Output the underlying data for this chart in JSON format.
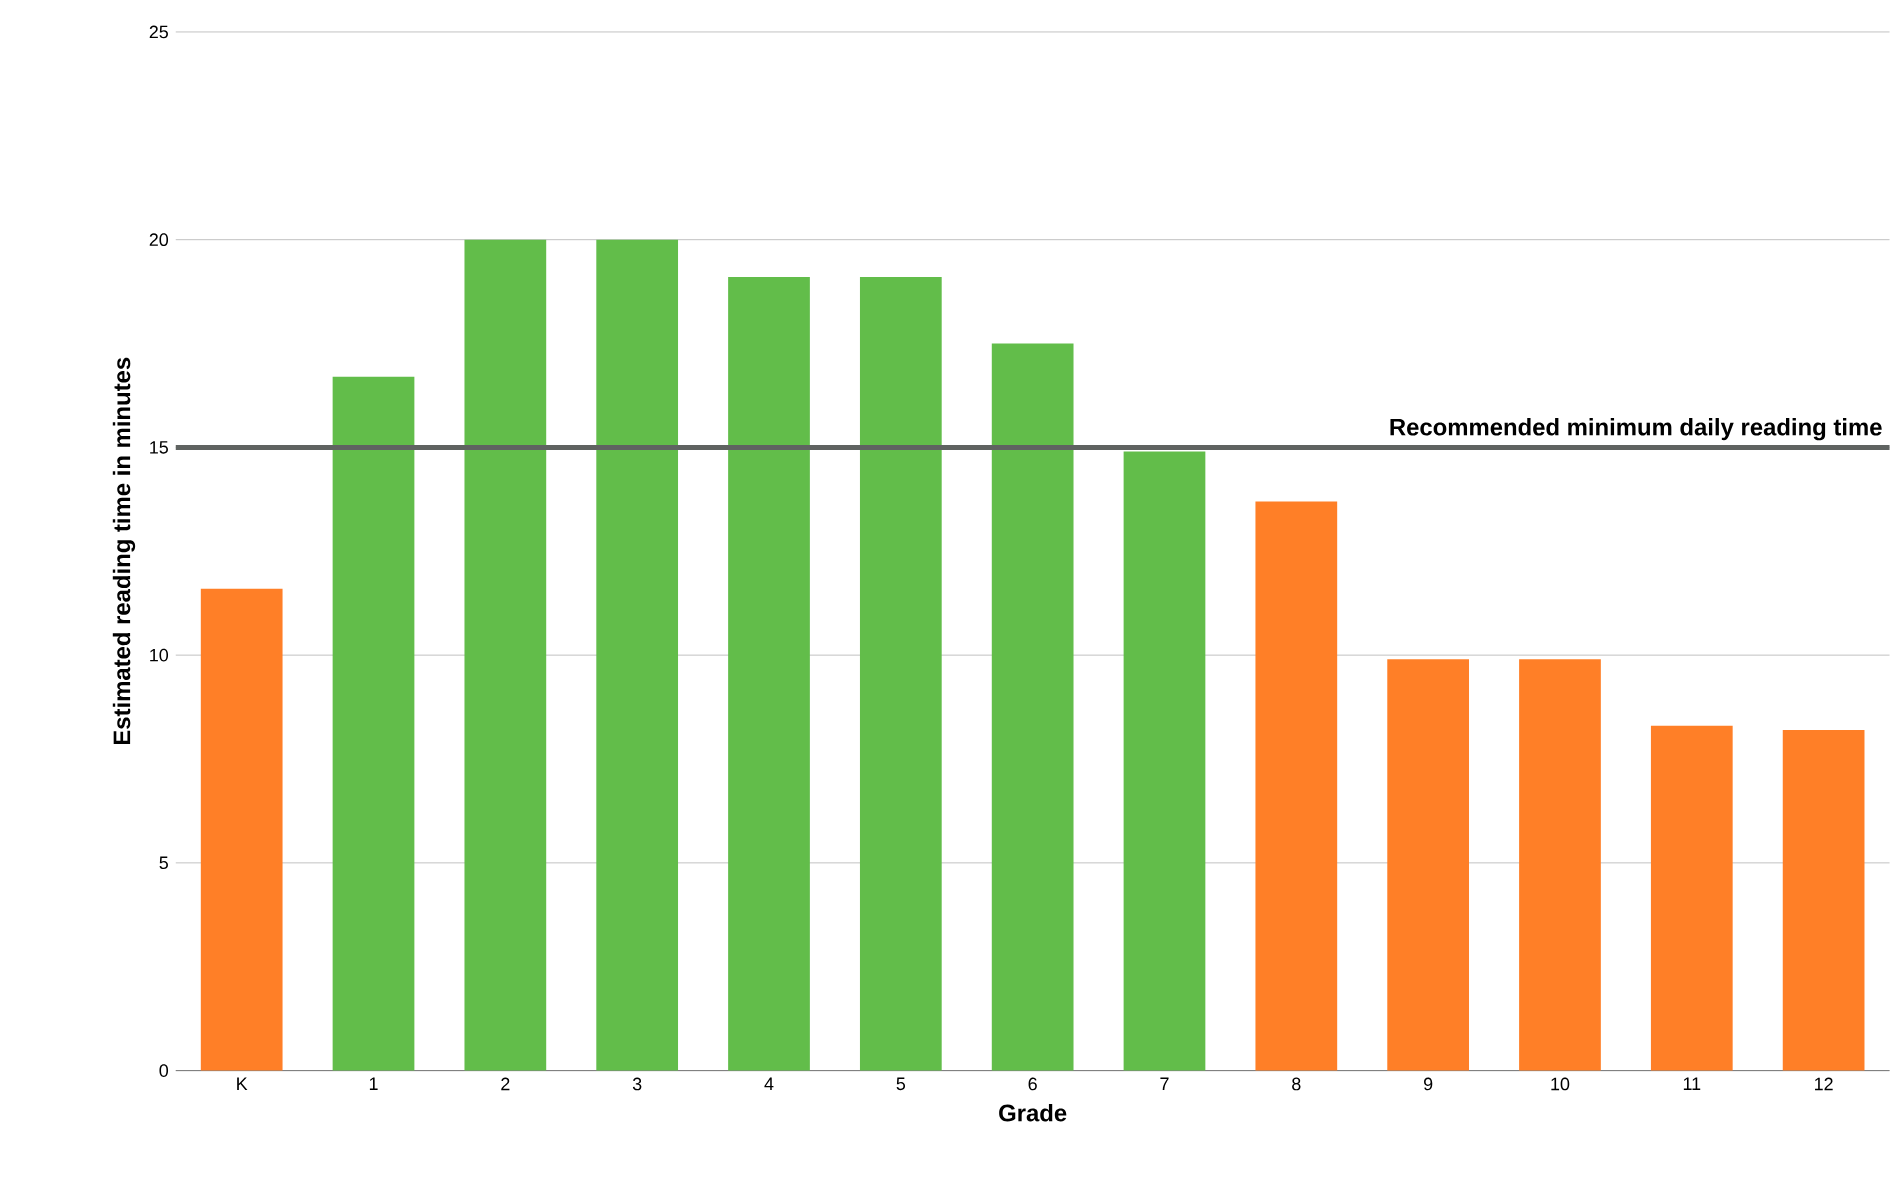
{
  "chart_data": {
    "type": "bar",
    "xlabel": "Grade",
    "ylabel": "Estimated reading time in minutes",
    "categories": [
      "K",
      "1",
      "2",
      "3",
      "4",
      "5",
      "6",
      "7",
      "8",
      "9",
      "10",
      "11",
      "12"
    ],
    "values": [
      11.6,
      16.7,
      20,
      20,
      19.1,
      19.1,
      17.5,
      14.9,
      13.7,
      9.9,
      9.9,
      8.3,
      8.2
    ],
    "colors": [
      "#ff7f27",
      "#62bd4a",
      "#62bd4a",
      "#62bd4a",
      "#62bd4a",
      "#62bd4a",
      "#62bd4a",
      "#62bd4a",
      "#ff7f27",
      "#ff7f27",
      "#ff7f27",
      "#ff7f27",
      "#ff7f27"
    ],
    "ylim": [
      0,
      25
    ],
    "yticks": [
      0,
      5,
      10,
      15,
      20,
      25
    ],
    "grid": "y",
    "ref_lines": [
      {
        "axis": "y",
        "value": 15,
        "label": "Recommended minimum daily reading time",
        "color": "#5f6361"
      }
    ]
  }
}
